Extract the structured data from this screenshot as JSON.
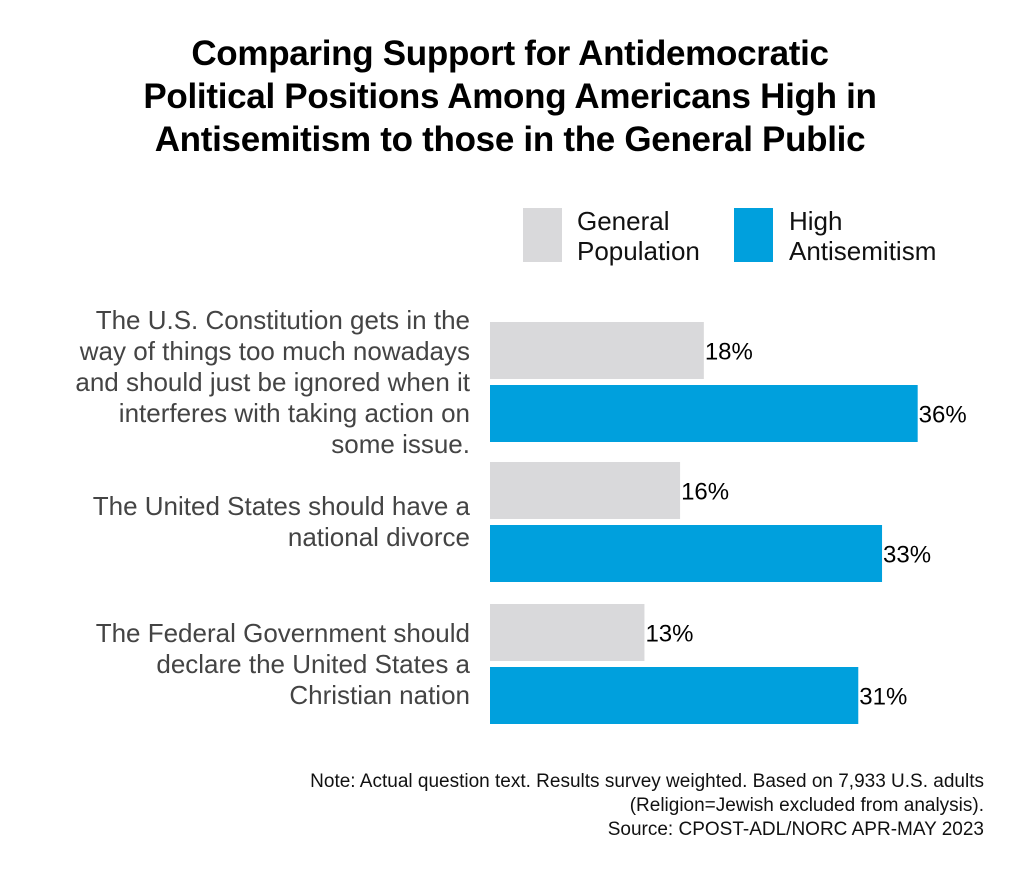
{
  "chart_data": {
    "type": "bar",
    "orientation": "horizontal",
    "title_lines": [
      "Comparing Support for Antidemocratic",
      "Political Positions Among Americans High in",
      "Antisemitism to those in the General Public"
    ],
    "categories": [
      [
        "The U.S. Constitution gets in the",
        "way of things too much nowadays",
        "and should just be ignored when it",
        "interferes with taking action on",
        "some issue."
      ],
      [
        "The United States should have a",
        "national divorce"
      ],
      [
        "The Federal Government should",
        "declare the United States a",
        "Christian nation"
      ]
    ],
    "series": [
      {
        "name_lines": [
          "General",
          "Population"
        ],
        "color": "#d9d9db",
        "values": [
          18,
          16,
          13
        ],
        "labels": [
          "18%",
          "16%",
          "13%"
        ]
      },
      {
        "name_lines": [
          "High",
          "Antisemitism"
        ],
        "color": "#00a0dd",
        "values": [
          36,
          33,
          31
        ],
        "labels": [
          "36%",
          "33%",
          "31%"
        ]
      }
    ],
    "unit": "%",
    "grid": false,
    "legend_position": "top-right",
    "note_lines": [
      "Note: Actual question text. Results survey weighted. Based on 7,933 U.S. adults",
      "(Religion=Jewish excluded from analysis).",
      "Source: CPOST-ADL/NORC APR-MAY 2023"
    ]
  }
}
